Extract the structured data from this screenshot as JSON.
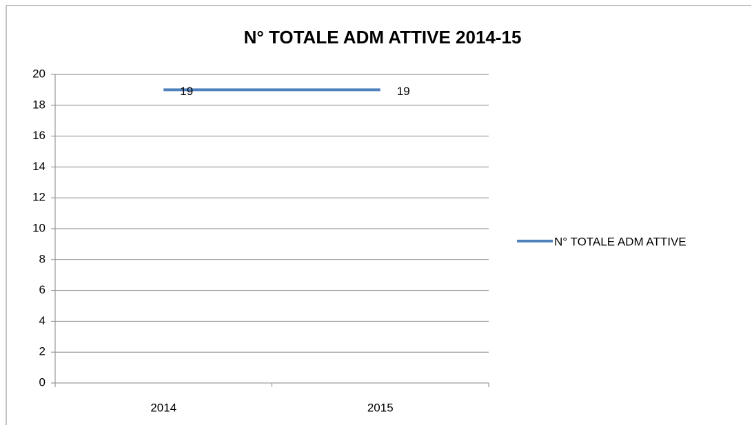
{
  "chart_data": {
    "type": "line",
    "title": "N° TOTALE ADM ATTIVE 2014-15",
    "categories": [
      "2014",
      "2015"
    ],
    "series": [
      {
        "name": "N° TOTALE ADM ATTIVE",
        "color": "#4f81bd",
        "values": [
          19,
          19
        ]
      }
    ],
    "ylim": [
      0,
      20
    ],
    "yticks": [
      0,
      2,
      4,
      6,
      8,
      10,
      12,
      14,
      16,
      18,
      20
    ],
    "grid": true,
    "legend": "right"
  }
}
